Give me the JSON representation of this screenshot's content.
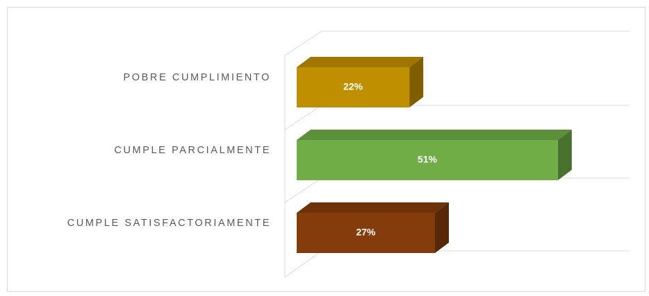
{
  "chart_data": {
    "type": "bar3d_horizontal",
    "categories": [
      "POBRE CUMPLIMIENTO",
      "CUMPLE PARCIALMENTE",
      "CUMPLE SATISFACTORIAMENTE"
    ],
    "values": [
      22,
      51,
      27
    ],
    "value_labels": [
      "22%",
      "51%",
      "27%"
    ],
    "colors": [
      "#bf8f00",
      "#70ad47",
      "#843c0c"
    ]
  }
}
